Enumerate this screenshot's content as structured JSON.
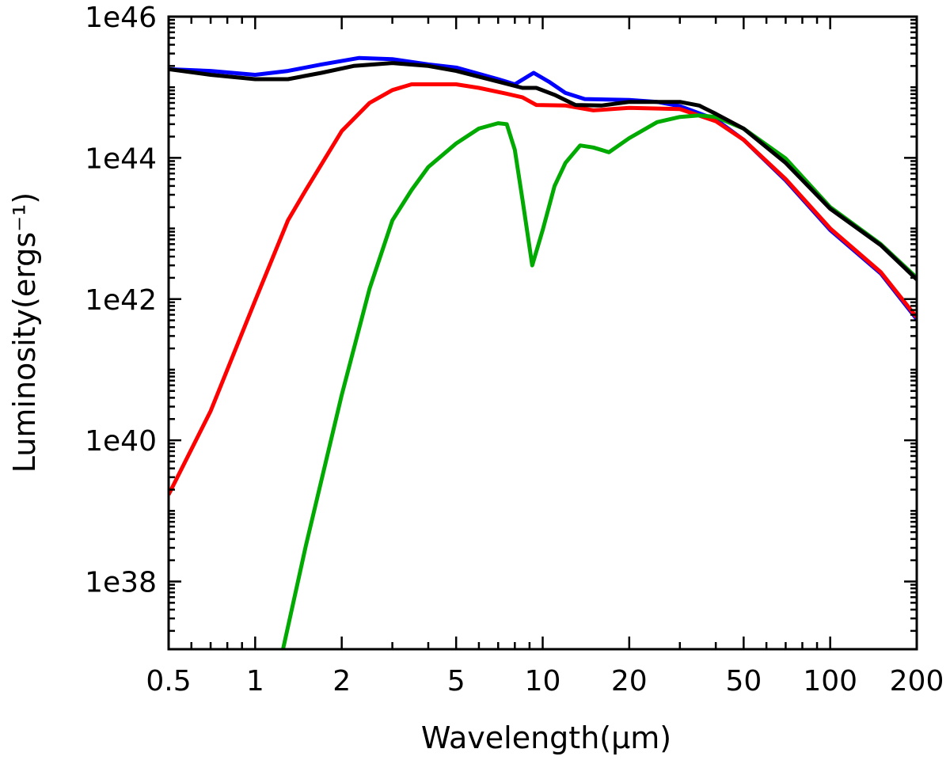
{
  "chart_data": {
    "type": "line",
    "title": "",
    "xlabel": "Wavelength(μm)",
    "ylabel": "Luminosity(ergs⁻¹)",
    "xscale": "log",
    "yscale": "log",
    "xlim": [
      0.5,
      200
    ],
    "ylim": [
      1.1e+37,
      1e+46
    ],
    "grid": false,
    "x_ticks": [
      0.5,
      1,
      2,
      5,
      10,
      20,
      50,
      100,
      200
    ],
    "x_tick_labels": [
      "0.5",
      "1",
      "2",
      "5",
      "10",
      "20",
      "50",
      "100",
      "200"
    ],
    "y_ticks": [
      1e+38,
      1e+40,
      1e+42,
      1e+44,
      1e+46
    ],
    "y_tick_labels": [
      "1e38",
      "1e40",
      "1e42",
      "1e44",
      "1e46"
    ],
    "series": [
      {
        "color": "#0000ff",
        "x": [
          0.5,
          0.7,
          1.0,
          1.3,
          1.7,
          2.3,
          3,
          4,
          5,
          7,
          8,
          9.3,
          10.5,
          12,
          14,
          20,
          25,
          30,
          40,
          50,
          70,
          100,
          150,
          200
        ],
        "y": [
          1.8e+45,
          1.7e+45,
          1.5e+45,
          1.7e+45,
          2.1e+45,
          2.6e+45,
          2.5e+45,
          2.1e+45,
          1.9e+45,
          1.3e+45,
          1.1e+45,
          1.6e+45,
          1.2e+45,
          8.3e+44,
          6.8e+44,
          6.6e+44,
          6.2e+44,
          5.4e+44,
          3.5e+44,
          1.8e+44,
          4.8e+43,
          9.5e+42,
          2.3e+42,
          5.2e+41
        ]
      },
      {
        "color": "#ff0000",
        "x": [
          0.5,
          0.7,
          1,
          1.3,
          1.5,
          2,
          2.5,
          3,
          3.5,
          5,
          6,
          7.5,
          8.5,
          9.5,
          12,
          15,
          20,
          30,
          40,
          50,
          70,
          100,
          150,
          200
        ],
        "y": [
          1.7e+39,
          2.6e+40,
          9.5e+41,
          1.3e+43,
          3.5e+43,
          2.4e+44,
          6e+44,
          9.1e+44,
          1.1e+45,
          1.1e+45,
          9.8e+44,
          8.1e+44,
          7.2e+44,
          5.6e+44,
          5.5e+44,
          4.7e+44,
          5.1e+44,
          4.9e+44,
          3.3e+44,
          1.8e+44,
          5e+43,
          1e+43,
          2.4e+42,
          5.5e+41
        ]
      },
      {
        "color": "#00aa00",
        "x": [
          1.25,
          1.5,
          2,
          2.5,
          3,
          3.5,
          4,
          5,
          6,
          7,
          7.5,
          8,
          8.5,
          9.2,
          10,
          11,
          12,
          13.5,
          15,
          17,
          20,
          25,
          30,
          35,
          40,
          50,
          70,
          100,
          150,
          200
        ],
        "y": [
          1.1e+37,
          3.2e+38,
          4.4e+40,
          1.4e+42,
          1.3e+43,
          3.5e+43,
          7.4e+43,
          1.6e+44,
          2.6e+44,
          3.1e+44,
          3e+44,
          1.3e+44,
          2.6e+43,
          3e+42,
          9.5e+42,
          4e+43,
          8.5e+43,
          1.5e+44,
          1.4e+44,
          1.2e+44,
          1.9e+44,
          3.2e+44,
          3.8e+44,
          4e+44,
          3.8e+44,
          2.6e+44,
          9.8e+43,
          2e+43,
          6e+42,
          2e+42
        ]
      },
      {
        "color": "#000000",
        "x": [
          0.5,
          0.7,
          1,
          1.3,
          1.7,
          2.2,
          3,
          4,
          5,
          7,
          8.5,
          9.5,
          11,
          13,
          16,
          20,
          30,
          35,
          40,
          50,
          70,
          100,
          150,
          200
        ],
        "y": [
          1.8e+45,
          1.5e+45,
          1.3e+45,
          1.3e+45,
          1.6e+45,
          2e+45,
          2.2e+45,
          2e+45,
          1.7e+45,
          1.2e+45,
          9.8e+44,
          9.8e+44,
          7.8e+44,
          5.6e+44,
          5.5e+44,
          6.2e+44,
          6.2e+44,
          5.5e+44,
          4.2e+44,
          2.6e+44,
          8.5e+43,
          1.9e+43,
          5.8e+42,
          1.9e+42
        ]
      }
    ]
  }
}
